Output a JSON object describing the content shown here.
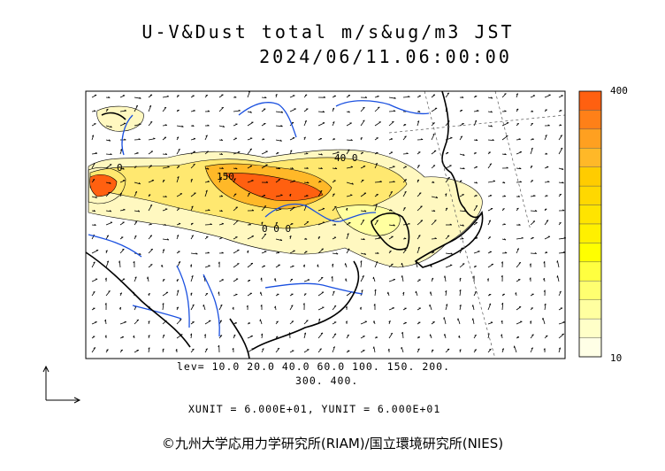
{
  "title": {
    "line1": "U-V&Dust total m/s&ug/m3 JST",
    "line2": "2024/06/11.06:00:00"
  },
  "levels": {
    "line1": "lev= 10.0 20.0 40.0 60.0 100. 150. 200.",
    "line2": "300. 400."
  },
  "units_text": "XUNIT = 6.000E+01, YUNIT = 6.000E+01",
  "copyright": "©九州大学応用力学研究所(RIAM)/国立環境研究所(NIES)",
  "colorbar": {
    "max_label": "400",
    "min_label": "10",
    "colors": [
      "#ff6010",
      "#ff8018",
      "#ffa020",
      "#ffb828",
      "#ffcc00",
      "#ffd800",
      "#ffe400",
      "#fff000",
      "#ffff00",
      "#ffff40",
      "#ffff70",
      "#ffffa0",
      "#ffffc8",
      "#ffffe6"
    ]
  },
  "contour_labels": {
    "a": "0",
    "b": "150",
    "c": "40 0",
    "d": "0 0 0"
  },
  "colors": {
    "coastline": "#000000",
    "rivers": "#1a50e0",
    "dust_high": "#ff5a1a",
    "dust_low": "#fff8c0"
  }
}
